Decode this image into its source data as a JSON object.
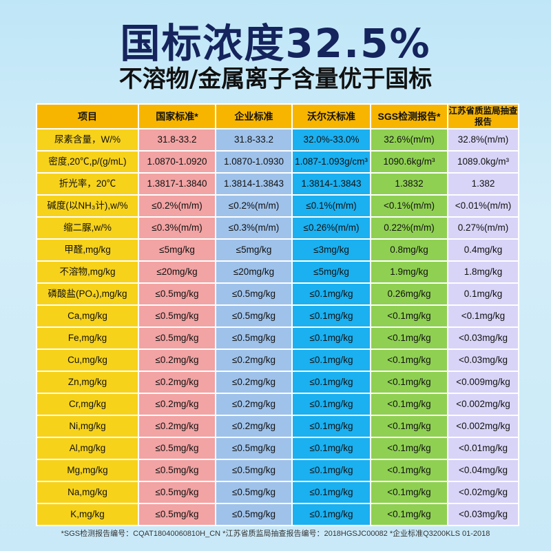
{
  "title": "国标浓度32.5%",
  "subtitle": "不溶物/金属离子含量优于国标",
  "table": {
    "headers": [
      "项目",
      "国家标准*",
      "企业标准",
      "沃尔沃标准",
      "SGS检测报告*",
      "江苏省质监局抽查报告"
    ],
    "rows": [
      [
        "尿素含量，W/%",
        "31.8-33.2",
        "31.8-33.2",
        "32.0%-33.0%",
        "32.6%(m/m)",
        "32.8%(m/m)"
      ],
      [
        "密度,20℃,p/(g/mL)",
        "1.0870-1.0920",
        "1.0870-1.0930",
        "1.087-1.093g/cm³",
        "1090.6kg/m³",
        "1089.0kg/m³"
      ],
      [
        "折光率，20℃",
        "1.3817-1.3840",
        "1.3814-1.3843",
        "1.3814-1.3843",
        "1.3832",
        "1.382"
      ],
      [
        "碱度(以NH₃计),w/%",
        "≤0.2%(m/m)",
        "≤0.2%(m/m)",
        "≤0.1%(m/m)",
        "<0.1%(m/m)",
        "<0.01%(m/m)"
      ],
      [
        "缩二脲,w/%",
        "≤0.3%(m/m)",
        "≤0.3%(m/m)",
        "≤0.26%(m/m)",
        "0.22%(m/m)",
        "0.27%(m/m)"
      ],
      [
        "甲醛,mg/kg",
        "≤5mg/kg",
        "≤5mg/kg",
        "≤3mg/kg",
        "0.8mg/kg",
        "0.4mg/kg"
      ],
      [
        "不溶物,mg/kg",
        "≤20mg/kg",
        "≤20mg/kg",
        "≤5mg/kg",
        "1.9mg/kg",
        "1.8mg/kg"
      ],
      [
        "磷酸盐(PO₄),mg/kg",
        "≤0.5mg/kg",
        "≤0.5mg/kg",
        "≤0.1mg/kg",
        "0.26mg/kg",
        "0.1mg/kg"
      ],
      [
        "Ca,mg/kg",
        "≤0.5mg/kg",
        "≤0.5mg/kg",
        "≤0.1mg/kg",
        "<0.1mg/kg",
        "<0.1mg/kg"
      ],
      [
        "Fe,mg/kg",
        "≤0.5mg/kg",
        "≤0.5mg/kg",
        "≤0.1mg/kg",
        "<0.1mg/kg",
        "<0.03mg/kg"
      ],
      [
        "Cu,mg/kg",
        "≤0.2mg/kg",
        "≤0.2mg/kg",
        "≤0.1mg/kg",
        "<0.1mg/kg",
        "<0.03mg/kg"
      ],
      [
        "Zn,mg/kg",
        "≤0.2mg/kg",
        "≤0.2mg/kg",
        "≤0.1mg/kg",
        "<0.1mg/kg",
        "<0.009mg/kg"
      ],
      [
        "Cr,mg/kg",
        "≤0.2mg/kg",
        "≤0.2mg/kg",
        "≤0.1mg/kg",
        "<0.1mg/kg",
        "<0.002mg/kg"
      ],
      [
        "Ni,mg/kg",
        "≤0.2mg/kg",
        "≤0.2mg/kg",
        "≤0.1mg/kg",
        "<0.1mg/kg",
        "<0.002mg/kg"
      ],
      [
        "Al,mg/kg",
        "≤0.5mg/kg",
        "≤0.5mg/kg",
        "≤0.1mg/kg",
        "<0.1mg/kg",
        "<0.01mg/kg"
      ],
      [
        "Mg,mg/kg",
        "≤0.5mg/kg",
        "≤0.5mg/kg",
        "≤0.1mg/kg",
        "<0.1mg/kg",
        "<0.04mg/kg"
      ],
      [
        "Na,mg/kg",
        "≤0.5mg/kg",
        "≤0.5mg/kg",
        "≤0.1mg/kg",
        "<0.1mg/kg",
        "<0.02mg/kg"
      ],
      [
        "K,mg/kg",
        "≤0.5mg/kg",
        "≤0.5mg/kg",
        "≤0.1mg/kg",
        "<0.1mg/kg",
        "<0.03mg/kg"
      ]
    ]
  },
  "footnote": "*SGS检测报告编号：CQAT18040060810H_CN  *江苏省质监局抽查报告编号：2018HGSJC00082  *企业标准Q3200KLS 01-2018"
}
